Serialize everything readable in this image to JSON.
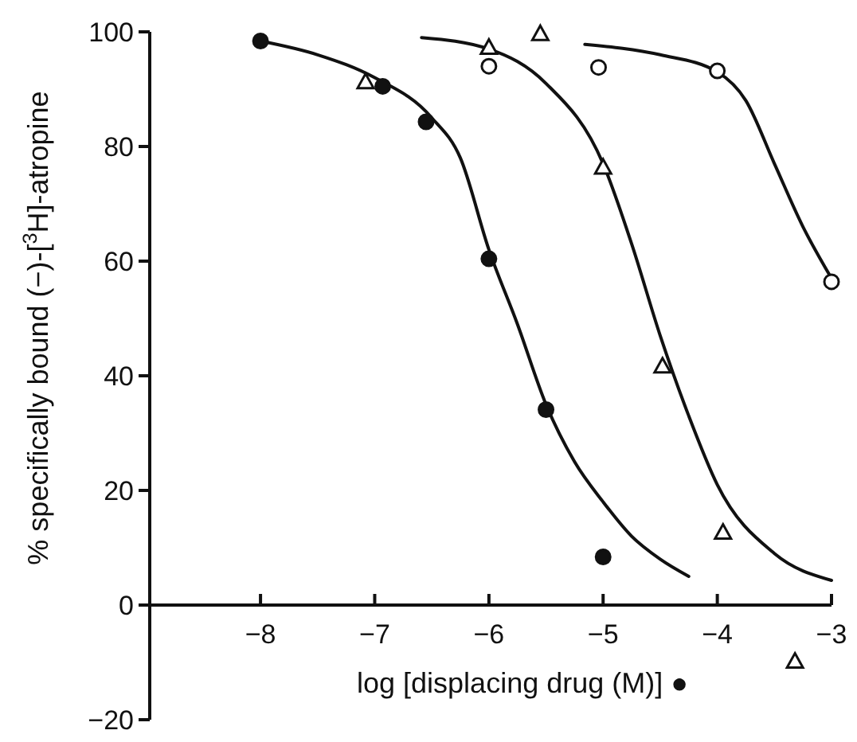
{
  "chart_data": {
    "type": "scatter",
    "xlabel": "log [displacing drug (M)] ●",
    "ylabel": "% specifically bound (−)-[$^{3}$H]-atropine",
    "xlim": [
      -8.97,
      -3
    ],
    "ylim": [
      -20,
      100
    ],
    "xticks": [
      {
        "value": -8,
        "label": "−8"
      },
      {
        "value": -7,
        "label": "−7"
      },
      {
        "value": -6,
        "label": "−6"
      },
      {
        "value": -5,
        "label": "−5"
      },
      {
        "value": -4,
        "label": "−4"
      },
      {
        "value": -3,
        "label": "−3"
      }
    ],
    "yticks": [
      {
        "value": -20,
        "label": "−20"
      },
      0,
      20,
      40,
      60,
      80,
      100
    ],
    "grid": false,
    "series": [
      {
        "marker": "circle",
        "color": "#111111",
        "x": [
          -8,
          -6.93,
          -6.55,
          -6,
          -5.5,
          -5
        ],
        "values": [
          98.4,
          90.5,
          84.3,
          60.4,
          34.1,
          8.4
        ]
      },
      {
        "marker": "triangle",
        "color": "#ffffff",
        "x": [
          -7.08,
          -6,
          -5.55,
          -5,
          -4.48,
          -3.95,
          -3.32
        ],
        "values": [
          91.3,
          97.3,
          99.7,
          76.4,
          41.7,
          12.7,
          -9.8
        ]
      },
      {
        "marker": "circle",
        "color": "#ffffff",
        "x": [
          -6,
          -5.04,
          -4,
          -3
        ],
        "values": [
          94,
          93.8,
          93.2,
          56.4
        ]
      },
      {
        "type": "line",
        "marker": "none",
        "line_style": "solid",
        "color": "#111111",
        "x": [
          -8,
          -7.5,
          -7,
          -6.5,
          -6.25,
          -6,
          -5.75,
          -5.5,
          -5.25,
          -5,
          -4.75,
          -4.5,
          -4.25
        ],
        "values": [
          98.4,
          96,
          92,
          85,
          78,
          62,
          49,
          35,
          25,
          18,
          12,
          8,
          5
        ]
      },
      {
        "type": "line",
        "marker": "none",
        "line_style": "solid",
        "color": "#111111",
        "x": [
          -6.59,
          -6,
          -5.5,
          -5,
          -4.75,
          -4.5,
          -4.25,
          -4,
          -3.5,
          -3
        ],
        "values": [
          99,
          97,
          91,
          77,
          63,
          47,
          33,
          21,
          9,
          4.3
        ]
      },
      {
        "type": "line",
        "marker": "none",
        "line_style": "solid",
        "color": "#111111",
        "x": [
          -5.16,
          -4.5,
          -4,
          -3.75,
          -3.5,
          -3.25,
          -3
        ],
        "values": [
          97.8,
          96,
          93,
          88,
          77,
          66,
          57
        ]
      }
    ]
  }
}
